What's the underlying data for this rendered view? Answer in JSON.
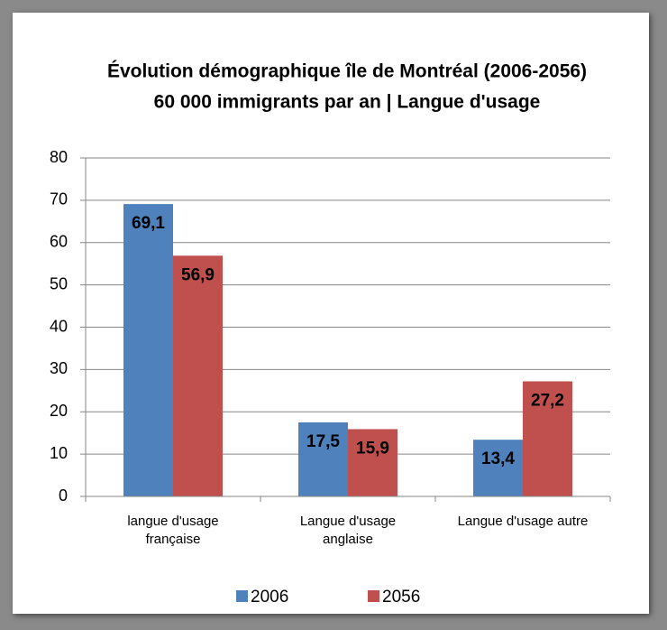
{
  "chart_data": {
    "type": "bar",
    "title": "Évolution démographique île de Montréal (2006-2056)",
    "subtitle": "60 000 immigrants par an | Langue d'usage",
    "categories": [
      "langue d'usage française",
      "Langue d'usage anglaise",
      "Langue d'usage autre"
    ],
    "series": [
      {
        "name": "2006",
        "color": "#4f81bd",
        "values": [
          69.1,
          17.5,
          13.4
        ],
        "value_labels": [
          "69,1",
          "17,5",
          "13,4"
        ]
      },
      {
        "name": "2056",
        "color": "#c0504d",
        "values": [
          56.9,
          15.9,
          27.2
        ],
        "value_labels": [
          "56,9",
          "15,9",
          "27,2"
        ]
      }
    ],
    "ylim": [
      0,
      80
    ],
    "yticks": [
      0,
      10,
      20,
      30,
      40,
      50,
      60,
      70,
      80
    ],
    "grid": true,
    "legend": "bottom"
  }
}
